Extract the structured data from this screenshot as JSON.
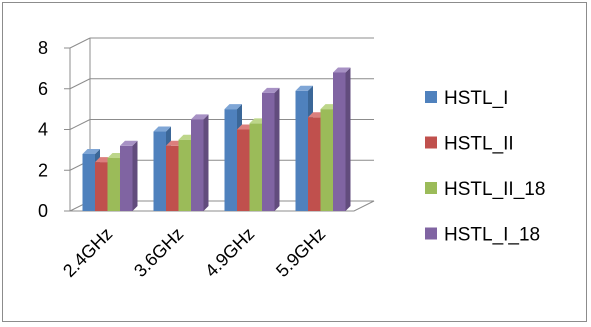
{
  "chart_data": {
    "type": "bar",
    "style": "3d-clustered-column",
    "categories": [
      "2.4GHz",
      "3.6GHz",
      "4.9GHz",
      "5.9GHz"
    ],
    "series": [
      {
        "name": "HSTL_I",
        "values": [
          2.8,
          3.9,
          5.0,
          5.9
        ],
        "color": "#4f81bd",
        "side": "#3b6798",
        "top": "#7fa6d6"
      },
      {
        "name": "HSTL_II",
        "values": [
          2.4,
          3.2,
          4.0,
          4.6
        ],
        "color": "#c0504d",
        "side": "#963d3b",
        "top": "#db7f7d"
      },
      {
        "name": "HSTL_II_18",
        "values": [
          2.6,
          3.5,
          4.3,
          5.0
        ],
        "color": "#9bbb59",
        "side": "#789144",
        "top": "#bdd68a"
      },
      {
        "name": "HSTL_I_18",
        "values": [
          3.2,
          4.5,
          5.8,
          6.8
        ],
        "color": "#8064a2",
        "side": "#624c7d",
        "top": "#a791c4"
      }
    ],
    "yticks": [
      0,
      2,
      4,
      6,
      8
    ],
    "ylim": [
      0,
      8
    ],
    "grid": true,
    "legend": "right",
    "title": "",
    "xlabel": "",
    "ylabel": ""
  }
}
